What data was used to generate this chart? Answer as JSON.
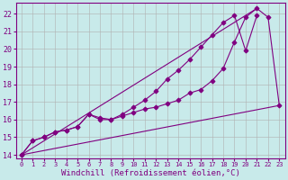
{
  "background_color": "#c8eaea",
  "grid_color": "#b0b0b0",
  "line_color": "#800080",
  "marker": "D",
  "xlim": [
    -0.5,
    23.5
  ],
  "ylim": [
    13.8,
    22.6
  ],
  "xlabel": "Windchill (Refroidissement éolien,°C)",
  "xlabel_fontsize": 6.5,
  "ytick_labels": [
    "14",
    "15",
    "16",
    "17",
    "18",
    "19",
    "20",
    "21",
    "22"
  ],
  "ytick_vals": [
    14,
    15,
    16,
    17,
    18,
    19,
    20,
    21,
    22
  ],
  "xtick_vals": [
    0,
    1,
    2,
    3,
    4,
    5,
    6,
    7,
    8,
    9,
    10,
    11,
    12,
    13,
    14,
    15,
    16,
    17,
    18,
    19,
    20,
    21,
    22,
    23
  ],
  "xtick_labels": [
    "0",
    "1",
    "2",
    "3",
    "4",
    "5",
    "6",
    "7",
    "8",
    "9",
    "10",
    "11",
    "12",
    "13",
    "14",
    "15",
    "16",
    "17",
    "18",
    "19",
    "20",
    "21",
    "22",
    "23"
  ],
  "line1_x": [
    0,
    1,
    2,
    3,
    4,
    5,
    6,
    7,
    8,
    9,
    10,
    11,
    12,
    13,
    14,
    15,
    16,
    17,
    18,
    19,
    20,
    21
  ],
  "line1_y": [
    14.0,
    14.8,
    15.0,
    15.3,
    15.4,
    15.6,
    16.3,
    16.0,
    16.0,
    16.3,
    16.7,
    17.1,
    17.6,
    18.3,
    18.8,
    19.4,
    20.1,
    20.8,
    21.5,
    21.9,
    19.9,
    21.9
  ],
  "line2_x": [
    0,
    1,
    2,
    3,
    4,
    5,
    6,
    7,
    8,
    9,
    10,
    11,
    12,
    13,
    14,
    15,
    16,
    17,
    18,
    19,
    20,
    21,
    22,
    23
  ],
  "line2_y": [
    14.0,
    14.8,
    15.0,
    15.3,
    15.4,
    15.6,
    16.3,
    16.1,
    16.0,
    16.2,
    16.4,
    16.6,
    16.7,
    16.9,
    17.1,
    17.5,
    17.7,
    18.2,
    18.9,
    20.4,
    21.8,
    22.3,
    21.8,
    16.8
  ],
  "line3_x": [
    0,
    23
  ],
  "line3_y": [
    14.0,
    16.8
  ],
  "line4_x": [
    0,
    21
  ],
  "line4_y": [
    14.0,
    22.3
  ]
}
